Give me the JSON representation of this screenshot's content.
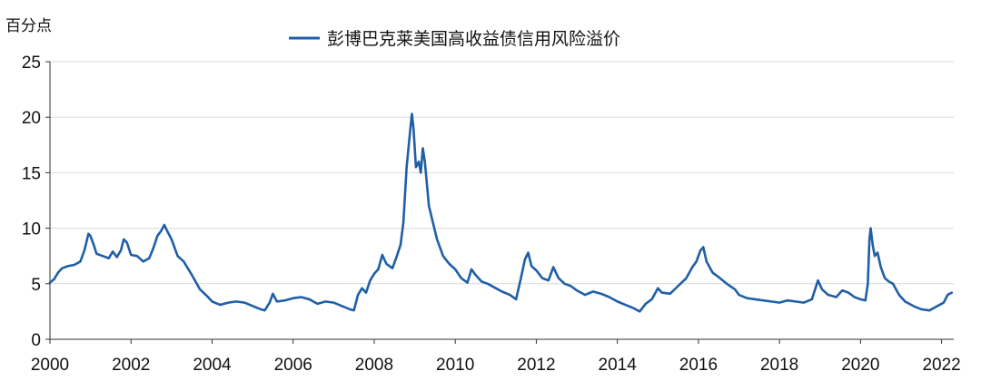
{
  "chart_data": {
    "type": "line",
    "ylabel": "百分点",
    "xlabel": "",
    "ylim": [
      0,
      25
    ],
    "xlim": [
      2000,
      2022.3
    ],
    "yticks": [
      0,
      5,
      10,
      15,
      20,
      25
    ],
    "xticks": [
      2000,
      2002,
      2004,
      2006,
      2008,
      2010,
      2012,
      2014,
      2016,
      2018,
      2020,
      2022
    ],
    "grid": "horizontal",
    "legend_position": "top-center",
    "series": [
      {
        "name": "彭博巴克莱美国高收益债信用风险溢价",
        "color": "#1f5fa6",
        "points": [
          [
            2000.0,
            5.1
          ],
          [
            2000.1,
            5.4
          ],
          [
            2000.2,
            6.0
          ],
          [
            2000.3,
            6.4
          ],
          [
            2000.45,
            6.6
          ],
          [
            2000.6,
            6.7
          ],
          [
            2000.75,
            7.0
          ],
          [
            2000.85,
            8.0
          ],
          [
            2000.95,
            9.5
          ],
          [
            2001.0,
            9.3
          ],
          [
            2001.08,
            8.5
          ],
          [
            2001.15,
            7.7
          ],
          [
            2001.3,
            7.5
          ],
          [
            2001.45,
            7.3
          ],
          [
            2001.55,
            7.9
          ],
          [
            2001.65,
            7.4
          ],
          [
            2001.75,
            8.0
          ],
          [
            2001.82,
            9.0
          ],
          [
            2001.9,
            8.7
          ],
          [
            2002.0,
            7.6
          ],
          [
            2002.15,
            7.5
          ],
          [
            2002.3,
            7.0
          ],
          [
            2002.45,
            7.3
          ],
          [
            2002.55,
            8.2
          ],
          [
            2002.65,
            9.3
          ],
          [
            2002.75,
            9.8
          ],
          [
            2002.82,
            10.3
          ],
          [
            2002.9,
            9.7
          ],
          [
            2003.0,
            9.0
          ],
          [
            2003.15,
            7.5
          ],
          [
            2003.3,
            7.0
          ],
          [
            2003.5,
            5.8
          ],
          [
            2003.7,
            4.5
          ],
          [
            2003.9,
            3.8
          ],
          [
            2004.0,
            3.4
          ],
          [
            2004.2,
            3.1
          ],
          [
            2004.4,
            3.3
          ],
          [
            2004.6,
            3.4
          ],
          [
            2004.8,
            3.3
          ],
          [
            2005.0,
            3.0
          ],
          [
            2005.2,
            2.7
          ],
          [
            2005.3,
            2.6
          ],
          [
            2005.42,
            3.3
          ],
          [
            2005.5,
            4.1
          ],
          [
            2005.6,
            3.4
          ],
          [
            2005.8,
            3.5
          ],
          [
            2006.0,
            3.7
          ],
          [
            2006.2,
            3.8
          ],
          [
            2006.4,
            3.6
          ],
          [
            2006.6,
            3.2
          ],
          [
            2006.8,
            3.4
          ],
          [
            2007.0,
            3.3
          ],
          [
            2007.2,
            3.0
          ],
          [
            2007.4,
            2.7
          ],
          [
            2007.5,
            2.6
          ],
          [
            2007.6,
            4.0
          ],
          [
            2007.7,
            4.6
          ],
          [
            2007.8,
            4.2
          ],
          [
            2007.9,
            5.3
          ],
          [
            2008.0,
            5.9
          ],
          [
            2008.1,
            6.3
          ],
          [
            2008.2,
            7.6
          ],
          [
            2008.3,
            6.8
          ],
          [
            2008.45,
            6.4
          ],
          [
            2008.55,
            7.4
          ],
          [
            2008.65,
            8.5
          ],
          [
            2008.72,
            10.5
          ],
          [
            2008.8,
            15.5
          ],
          [
            2008.88,
            18.5
          ],
          [
            2008.93,
            20.3
          ],
          [
            2008.97,
            19.0
          ],
          [
            2009.03,
            15.5
          ],
          [
            2009.1,
            16.0
          ],
          [
            2009.15,
            15.0
          ],
          [
            2009.2,
            17.2
          ],
          [
            2009.25,
            16.0
          ],
          [
            2009.35,
            12.0
          ],
          [
            2009.45,
            10.5
          ],
          [
            2009.55,
            9.0
          ],
          [
            2009.7,
            7.5
          ],
          [
            2009.85,
            6.8
          ],
          [
            2010.0,
            6.3
          ],
          [
            2010.15,
            5.5
          ],
          [
            2010.3,
            5.1
          ],
          [
            2010.4,
            6.3
          ],
          [
            2010.5,
            5.8
          ],
          [
            2010.65,
            5.2
          ],
          [
            2010.8,
            5.0
          ],
          [
            2011.0,
            4.6
          ],
          [
            2011.15,
            4.3
          ],
          [
            2011.35,
            4.0
          ],
          [
            2011.5,
            3.6
          ],
          [
            2011.62,
            5.5
          ],
          [
            2011.72,
            7.2
          ],
          [
            2011.8,
            7.8
          ],
          [
            2011.88,
            6.6
          ],
          [
            2012.0,
            6.2
          ],
          [
            2012.15,
            5.5
          ],
          [
            2012.3,
            5.3
          ],
          [
            2012.42,
            6.5
          ],
          [
            2012.55,
            5.5
          ],
          [
            2012.7,
            5.0
          ],
          [
            2012.85,
            4.8
          ],
          [
            2013.0,
            4.4
          ],
          [
            2013.2,
            4.0
          ],
          [
            2013.4,
            4.3
          ],
          [
            2013.6,
            4.1
          ],
          [
            2013.8,
            3.8
          ],
          [
            2014.0,
            3.4
          ],
          [
            2014.2,
            3.1
          ],
          [
            2014.4,
            2.8
          ],
          [
            2014.55,
            2.5
          ],
          [
            2014.7,
            3.2
          ],
          [
            2014.85,
            3.6
          ],
          [
            2015.0,
            4.6
          ],
          [
            2015.1,
            4.2
          ],
          [
            2015.3,
            4.1
          ],
          [
            2015.5,
            4.8
          ],
          [
            2015.7,
            5.5
          ],
          [
            2015.85,
            6.5
          ],
          [
            2015.95,
            7.0
          ],
          [
            2016.05,
            8.0
          ],
          [
            2016.12,
            8.3
          ],
          [
            2016.2,
            7.0
          ],
          [
            2016.35,
            6.0
          ],
          [
            2016.5,
            5.6
          ],
          [
            2016.7,
            5.0
          ],
          [
            2016.9,
            4.5
          ],
          [
            2017.0,
            4.0
          ],
          [
            2017.2,
            3.7
          ],
          [
            2017.4,
            3.6
          ],
          [
            2017.6,
            3.5
          ],
          [
            2017.8,
            3.4
          ],
          [
            2018.0,
            3.3
          ],
          [
            2018.2,
            3.5
          ],
          [
            2018.4,
            3.4
          ],
          [
            2018.6,
            3.3
          ],
          [
            2018.8,
            3.6
          ],
          [
            2018.95,
            5.3
          ],
          [
            2019.05,
            4.5
          ],
          [
            2019.2,
            4.0
          ],
          [
            2019.4,
            3.8
          ],
          [
            2019.55,
            4.4
          ],
          [
            2019.7,
            4.2
          ],
          [
            2019.85,
            3.8
          ],
          [
            2020.0,
            3.6
          ],
          [
            2020.12,
            3.5
          ],
          [
            2020.18,
            5.0
          ],
          [
            2020.22,
            9.0
          ],
          [
            2020.25,
            10.0
          ],
          [
            2020.3,
            8.5
          ],
          [
            2020.35,
            7.5
          ],
          [
            2020.42,
            7.8
          ],
          [
            2020.5,
            6.5
          ],
          [
            2020.6,
            5.5
          ],
          [
            2020.7,
            5.2
          ],
          [
            2020.8,
            5.0
          ],
          [
            2020.95,
            4.0
          ],
          [
            2021.1,
            3.4
          ],
          [
            2021.3,
            3.0
          ],
          [
            2021.5,
            2.7
          ],
          [
            2021.7,
            2.6
          ],
          [
            2021.85,
            2.9
          ],
          [
            2021.95,
            3.1
          ],
          [
            2022.05,
            3.3
          ],
          [
            2022.15,
            4.0
          ],
          [
            2022.25,
            4.2
          ]
        ]
      }
    ]
  }
}
